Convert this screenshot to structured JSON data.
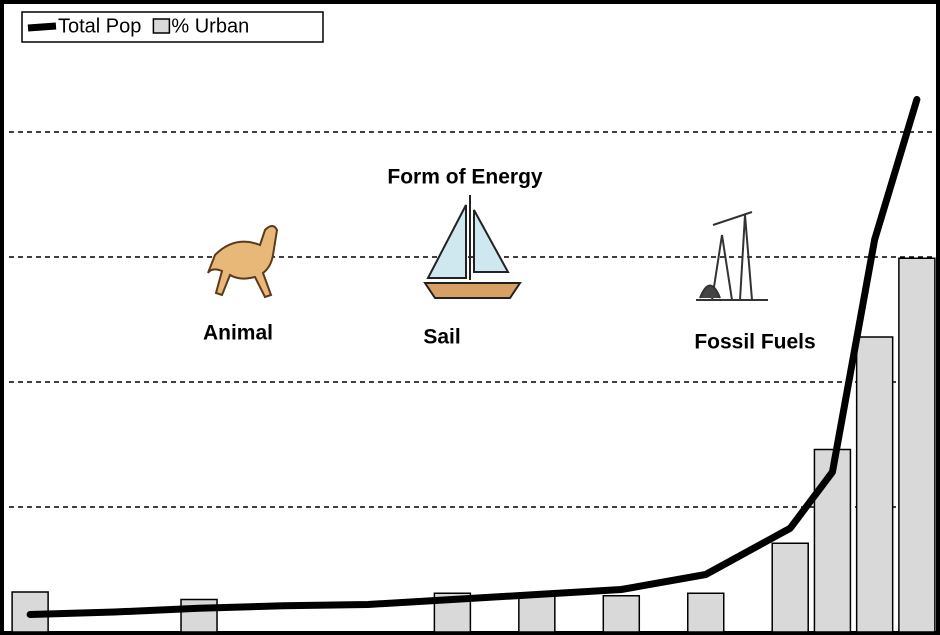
{
  "chart_data": {
    "type": "bar_line",
    "x": [
      0,
      2,
      4,
      6,
      8,
      10,
      12,
      14,
      16,
      18,
      19,
      20,
      21
    ],
    "xlim": [
      -0.5,
      21.5
    ],
    "ylim": [
      0,
      5
    ],
    "yticks": [
      1,
      2,
      3,
      4
    ],
    "grid": true,
    "series": [
      {
        "name": "Total Pop",
        "type": "line",
        "color": "#000000",
        "values": [
          0.14,
          0.16,
          0.19,
          0.21,
          0.22,
          0.26,
          0.3,
          0.34,
          0.46,
          0.83,
          1.28,
          3.14,
          4.26
        ]
      },
      {
        "name": "% Urban",
        "type": "bar",
        "color": "#d9d9d9",
        "values": [
          0.32,
          null,
          0.26,
          null,
          null,
          0.31,
          0.29,
          0.29,
          0.31,
          0.71,
          1.46,
          2.36,
          2.99
        ]
      }
    ],
    "legend": "upper-left",
    "annotations": [
      "Form of Energy",
      "Animal",
      "Sail",
      "Fossil Fuels"
    ]
  }
}
